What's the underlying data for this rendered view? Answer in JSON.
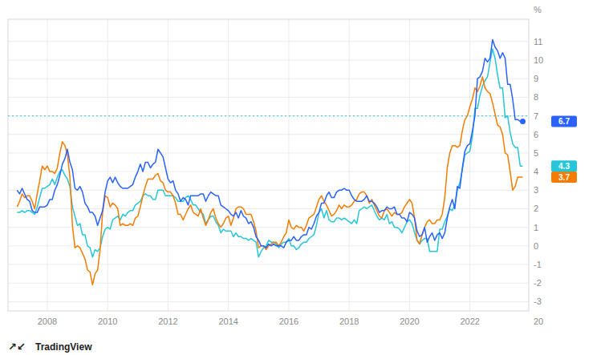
{
  "chart_data": {
    "type": "line",
    "ylabel": "%",
    "annotations": [
      "20",
      "↗↙",
      "TradingView"
    ],
    "xlim": [
      2006.7,
      2023.95
    ],
    "xticks": [
      2008,
      2010,
      2012,
      2014,
      2016,
      2018,
      2020,
      2022
    ],
    "ylim": [
      -3.5,
      12.2
    ],
    "yticks": [
      -3,
      -2,
      -1,
      0,
      1,
      2,
      3,
      4,
      5,
      6,
      7,
      8,
      9,
      10,
      11
    ],
    "grid": true,
    "hline": {
      "value": 7.0,
      "color": "#26c6da",
      "line_style": "dotted"
    },
    "x": [
      2007,
      2007.083333,
      2007.166667,
      2007.25,
      2007.333333,
      2007.416667,
      2007.5,
      2007.583333,
      2007.666667,
      2007.75,
      2007.833333,
      2007.916667,
      2008,
      2008.083333,
      2008.166667,
      2008.25,
      2008.333333,
      2008.416667,
      2008.5,
      2008.583333,
      2008.666667,
      2008.75,
      2008.833333,
      2008.916667,
      2009,
      2009.083333,
      2009.166667,
      2009.25,
      2009.333333,
      2009.416667,
      2009.5,
      2009.583333,
      2009.666667,
      2009.75,
      2009.833333,
      2009.916667,
      2010,
      2010.083333,
      2010.166667,
      2010.25,
      2010.333333,
      2010.416667,
      2010.5,
      2010.583333,
      2010.666667,
      2010.75,
      2010.833333,
      2010.916667,
      2011,
      2011.083333,
      2011.166667,
      2011.25,
      2011.333333,
      2011.416667,
      2011.5,
      2011.583333,
      2011.666667,
      2011.75,
      2011.833333,
      2011.916667,
      2012,
      2012.083333,
      2012.166667,
      2012.25,
      2012.333333,
      2012.416667,
      2012.5,
      2012.583333,
      2012.666667,
      2012.75,
      2012.833333,
      2012.916667,
      2013,
      2013.083333,
      2013.166667,
      2013.25,
      2013.333333,
      2013.416667,
      2013.5,
      2013.583333,
      2013.666667,
      2013.75,
      2013.833333,
      2013.916667,
      2014,
      2014.083333,
      2014.166667,
      2014.25,
      2014.333333,
      2014.416667,
      2014.5,
      2014.583333,
      2014.666667,
      2014.75,
      2014.833333,
      2014.916667,
      2015,
      2015.083333,
      2015.166667,
      2015.25,
      2015.333333,
      2015.416667,
      2015.5,
      2015.583333,
      2015.666667,
      2015.75,
      2015.833333,
      2015.916667,
      2016,
      2016.083333,
      2016.166667,
      2016.25,
      2016.333333,
      2016.416667,
      2016.5,
      2016.583333,
      2016.666667,
      2016.75,
      2016.833333,
      2016.916667,
      2017,
      2017.083333,
      2017.166667,
      2017.25,
      2017.333333,
      2017.416667,
      2017.5,
      2017.583333,
      2017.666667,
      2017.75,
      2017.833333,
      2017.916667,
      2018,
      2018.083333,
      2018.166667,
      2018.25,
      2018.333333,
      2018.416667,
      2018.5,
      2018.583333,
      2018.666667,
      2018.75,
      2018.833333,
      2018.916667,
      2019,
      2019.083333,
      2019.166667,
      2019.25,
      2019.333333,
      2019.416667,
      2019.5,
      2019.583333,
      2019.666667,
      2019.75,
      2019.833333,
      2019.916667,
      2020,
      2020.083333,
      2020.166667,
      2020.25,
      2020.333333,
      2020.416667,
      2020.5,
      2020.583333,
      2020.666667,
      2020.75,
      2020.833333,
      2020.916667,
      2021,
      2021.083333,
      2021.166667,
      2021.25,
      2021.333333,
      2021.416667,
      2021.5,
      2021.583333,
      2021.666667,
      2021.75,
      2021.833333,
      2021.916667,
      2022,
      2022.083333,
      2022.166667,
      2022.25,
      2022.333333,
      2022.416667,
      2022.5,
      2022.583333,
      2022.666667,
      2022.75,
      2022.833333,
      2022.916667,
      2023,
      2023.083333,
      2023.166667,
      2023.25,
      2023.333333,
      2023.416667,
      2023.5,
      2023.583333,
      2023.666667,
      2023.75
    ],
    "series": [
      {
        "color": "#2962ff",
        "end_label": "6.7",
        "marker": "end",
        "values": [
          3.0,
          2.8,
          3.1,
          2.8,
          2.5,
          2.4,
          1.9,
          1.8,
          1.8,
          2.1,
          2.1,
          2.1,
          2.2,
          2.5,
          2.5,
          3.0,
          3.3,
          3.8,
          4.4,
          4.7,
          5.2,
          4.5,
          4.1,
          3.1,
          3.0,
          3.2,
          2.9,
          2.3,
          2.1,
          1.8,
          1.8,
          1.6,
          1.1,
          1.5,
          1.9,
          2.9,
          3.5,
          3.7,
          3.4,
          3.7,
          3.4,
          3.2,
          3.1,
          3.1,
          3.1,
          3.2,
          3.3,
          3.7,
          4.0,
          4.4,
          4.0,
          4.5,
          4.5,
          4.2,
          4.4,
          4.5,
          5.2,
          5.0,
          4.8,
          4.2,
          3.6,
          3.4,
          3.5,
          3.0,
          2.8,
          2.4,
          2.6,
          2.5,
          2.2,
          2.7,
          2.7,
          2.7,
          2.7,
          2.8,
          2.8,
          2.4,
          2.7,
          2.9,
          2.8,
          2.7,
          2.7,
          2.2,
          2.1,
          2.0,
          1.9,
          1.7,
          1.6,
          1.8,
          1.5,
          1.9,
          1.6,
          1.5,
          1.2,
          1.3,
          1.0,
          0.5,
          0.3,
          0.0,
          0.0,
          -0.1,
          0.1,
          0.0,
          0.1,
          0.0,
          0.0,
          0.0,
          -0.1,
          0.2,
          0.3,
          0.3,
          0.5,
          0.3,
          0.3,
          0.5,
          0.6,
          0.6,
          1.0,
          0.9,
          1.2,
          1.6,
          1.8,
          2.3,
          2.3,
          2.7,
          2.9,
          2.6,
          2.6,
          2.9,
          3.0,
          3.0,
          3.1,
          3.0,
          3.0,
          2.7,
          2.5,
          2.4,
          2.4,
          2.4,
          2.5,
          2.7,
          2.4,
          2.4,
          2.3,
          2.1,
          1.8,
          1.9,
          1.9,
          2.1,
          2.0,
          2.0,
          2.1,
          1.7,
          1.7,
          1.5,
          1.5,
          1.3,
          1.8,
          1.7,
          1.5,
          0.8,
          0.5,
          0.6,
          1.0,
          0.2,
          0.5,
          0.7,
          0.3,
          0.6,
          0.7,
          0.4,
          0.7,
          1.5,
          2.1,
          2.5,
          2.0,
          3.2,
          3.1,
          4.2,
          5.1,
          5.4,
          5.5,
          6.2,
          7.0,
          9.0,
          9.1,
          9.4,
          10.1,
          9.9,
          10.1,
          11.1,
          10.7,
          10.5,
          10.1,
          10.4,
          10.1,
          8.7,
          8.7,
          7.9,
          6.8,
          6.8,
          6.7,
          6.7
        ]
      },
      {
        "color": "#f57c00",
        "end_label": "3.7",
        "values": [
          2.1,
          2.4,
          2.8,
          2.6,
          2.7,
          2.7,
          2.4,
          2.0,
          2.8,
          3.5,
          4.3,
          4.1,
          4.3,
          4.0,
          4.0,
          3.9,
          4.2,
          5.0,
          5.6,
          5.4,
          4.9,
          3.7,
          1.1,
          -0.1,
          0.0,
          -0.1,
          -0.4,
          -0.7,
          -1.3,
          -1.4,
          -2.1,
          -1.5,
          -1.3,
          -0.2,
          1.8,
          2.7,
          2.6,
          2.1,
          2.3,
          2.2,
          2.0,
          1.1,
          1.2,
          1.1,
          1.1,
          1.2,
          1.1,
          1.5,
          1.6,
          2.1,
          2.7,
          3.2,
          3.6,
          3.6,
          3.6,
          3.8,
          3.9,
          3.5,
          3.4,
          3.0,
          2.9,
          2.9,
          2.7,
          2.3,
          1.7,
          1.7,
          1.4,
          1.7,
          2.0,
          2.2,
          1.8,
          1.7,
          1.6,
          2.0,
          1.5,
          1.1,
          1.4,
          1.8,
          2.0,
          1.5,
          1.2,
          1.0,
          1.2,
          1.5,
          1.6,
          1.1,
          1.5,
          2.0,
          2.1,
          2.1,
          2.0,
          1.7,
          1.7,
          1.7,
          1.3,
          0.8,
          -0.1,
          0.0,
          0.0,
          -0.2,
          0.0,
          0.1,
          0.2,
          0.2,
          0.0,
          0.2,
          0.5,
          0.7,
          1.4,
          1.0,
          0.9,
          1.1,
          1.0,
          1.0,
          0.8,
          1.1,
          1.5,
          1.6,
          1.7,
          2.1,
          2.5,
          2.7,
          2.4,
          2.2,
          1.9,
          1.6,
          1.7,
          1.9,
          2.2,
          2.0,
          2.2,
          2.1,
          2.1,
          2.2,
          2.4,
          2.5,
          2.8,
          2.9,
          2.9,
          2.7,
          2.3,
          2.5,
          2.2,
          1.9,
          1.6,
          1.5,
          1.9,
          2.0,
          1.8,
          1.6,
          1.8,
          1.7,
          1.7,
          1.8,
          2.1,
          2.3,
          2.5,
          2.3,
          1.5,
          0.3,
          0.1,
          0.6,
          1.0,
          1.3,
          1.4,
          1.2,
          1.2,
          1.4,
          1.4,
          1.7,
          2.6,
          4.2,
          5.0,
          5.4,
          5.4,
          5.3,
          5.4,
          6.2,
          6.8,
          7.0,
          7.5,
          7.9,
          8.5,
          8.3,
          8.6,
          9.1,
          8.5,
          8.3,
          8.2,
          7.7,
          7.1,
          6.5,
          6.4,
          6.0,
          5.0,
          4.9,
          4.0,
          3.0,
          3.2,
          3.7,
          3.7,
          3.7
        ]
      },
      {
        "color": "#26c6da",
        "end_label": "4.3",
        "values": [
          1.8,
          1.8,
          1.9,
          1.8,
          1.9,
          1.9,
          1.8,
          1.7,
          2.1,
          2.6,
          3.1,
          3.1,
          3.2,
          3.3,
          3.6,
          3.3,
          3.7,
          4.0,
          4.1,
          3.8,
          3.6,
          3.2,
          2.1,
          1.6,
          1.1,
          1.2,
          0.6,
          0.6,
          0.0,
          -0.1,
          -0.6,
          -0.2,
          -0.3,
          -0.1,
          0.5,
          0.9,
          1.0,
          0.9,
          1.4,
          1.5,
          1.6,
          1.4,
          1.7,
          1.6,
          1.8,
          1.9,
          1.9,
          2.2,
          2.3,
          2.4,
          2.7,
          2.8,
          2.7,
          2.7,
          2.5,
          2.5,
          3.0,
          3.0,
          3.0,
          2.7,
          2.7,
          2.7,
          2.7,
          2.6,
          2.4,
          2.4,
          2.4,
          2.6,
          2.7,
          2.5,
          2.2,
          2.2,
          2.0,
          1.8,
          1.7,
          1.2,
          1.4,
          1.6,
          1.6,
          1.3,
          1.1,
          0.7,
          0.9,
          0.8,
          0.8,
          0.8,
          0.5,
          0.7,
          0.5,
          0.5,
          0.4,
          0.4,
          0.3,
          0.4,
          0.3,
          0.2,
          -0.6,
          -0.3,
          -0.1,
          0.0,
          0.3,
          0.2,
          0.2,
          0.1,
          -0.1,
          0.1,
          0.2,
          0.2,
          0.4,
          0.0,
          0.0,
          -0.2,
          -0.1,
          0.1,
          0.2,
          0.2,
          0.4,
          0.5,
          0.6,
          1.1,
          1.8,
          2.0,
          1.5,
          1.9,
          1.4,
          1.3,
          1.3,
          1.5,
          1.5,
          1.4,
          1.5,
          1.4,
          1.3,
          1.2,
          1.4,
          1.2,
          1.9,
          2.0,
          2.1,
          2.0,
          2.1,
          2.2,
          1.9,
          1.6,
          1.4,
          1.5,
          1.4,
          1.7,
          1.2,
          1.3,
          1.0,
          1.0,
          0.9,
          0.7,
          1.0,
          1.3,
          1.4,
          1.2,
          0.7,
          0.3,
          0.1,
          0.3,
          0.4,
          0.4,
          -0.3,
          -0.3,
          -0.3,
          -0.3,
          0.9,
          0.9,
          1.3,
          1.6,
          2.0,
          1.9,
          2.2,
          3.0,
          3.4,
          4.1,
          4.9,
          5.0,
          5.1,
          5.9,
          7.4,
          7.4,
          8.1,
          8.6,
          8.9,
          9.1,
          9.9,
          10.6,
          10.1,
          9.2,
          8.5,
          8.5,
          6.9,
          7.0,
          6.1,
          5.5,
          5.3,
          5.3,
          4.3,
          4.3
        ]
      }
    ]
  }
}
